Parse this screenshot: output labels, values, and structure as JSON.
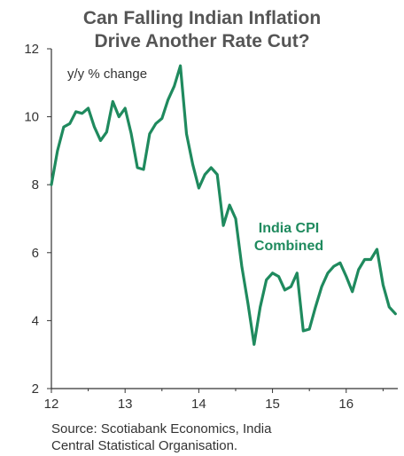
{
  "chart_data": {
    "type": "line",
    "title_lines": [
      "Can Falling Indian Inflation",
      "Drive Another Rate Cut?"
    ],
    "ylabel": "y/y % change",
    "xlabel": "",
    "xlim": [
      12,
      16.7
    ],
    "ylim": [
      2,
      12
    ],
    "x_ticks": [
      12,
      13,
      14,
      15,
      16
    ],
    "y_ticks": [
      2,
      4,
      6,
      8,
      10,
      12
    ],
    "grid": false,
    "color": "#1f8a5e",
    "series": [
      {
        "name": "India CPI Combined",
        "x": [
          12.0,
          12.083,
          12.167,
          12.25,
          12.333,
          12.417,
          12.5,
          12.583,
          12.667,
          12.75,
          12.833,
          12.917,
          13.0,
          13.083,
          13.167,
          13.25,
          13.333,
          13.417,
          13.5,
          13.583,
          13.667,
          13.75,
          13.833,
          13.917,
          14.0,
          14.083,
          14.167,
          14.25,
          14.333,
          14.417,
          14.5,
          14.583,
          14.667,
          14.75,
          14.833,
          14.917,
          15.0,
          15.083,
          15.167,
          15.25,
          15.333,
          15.417,
          15.5,
          15.583,
          15.667,
          15.75,
          15.833,
          15.917,
          16.0,
          16.083,
          16.167,
          16.25,
          16.333,
          16.417,
          16.5,
          16.583,
          16.667
        ],
        "y": [
          8.0,
          9.0,
          9.7,
          9.8,
          10.15,
          10.1,
          10.25,
          9.7,
          9.3,
          9.55,
          10.45,
          10.0,
          10.25,
          9.5,
          8.5,
          8.45,
          9.5,
          9.8,
          9.95,
          10.5,
          10.9,
          11.5,
          9.5,
          8.6,
          7.9,
          8.3,
          8.5,
          8.3,
          6.8,
          7.4,
          7.0,
          5.6,
          4.5,
          3.3,
          4.4,
          5.2,
          5.4,
          5.3,
          4.9,
          5.0,
          5.4,
          3.7,
          3.75,
          4.4,
          5.0,
          5.4,
          5.6,
          5.7,
          5.3,
          4.85,
          5.5,
          5.8,
          5.8,
          6.1,
          5.05,
          4.4,
          4.2
        ]
      }
    ],
    "annotation_lines": [
      "India CPI",
      "Combined"
    ]
  },
  "source_lines": [
    "Source: Scotiabank Economics, India",
    "Central Statistical Organisation."
  ]
}
